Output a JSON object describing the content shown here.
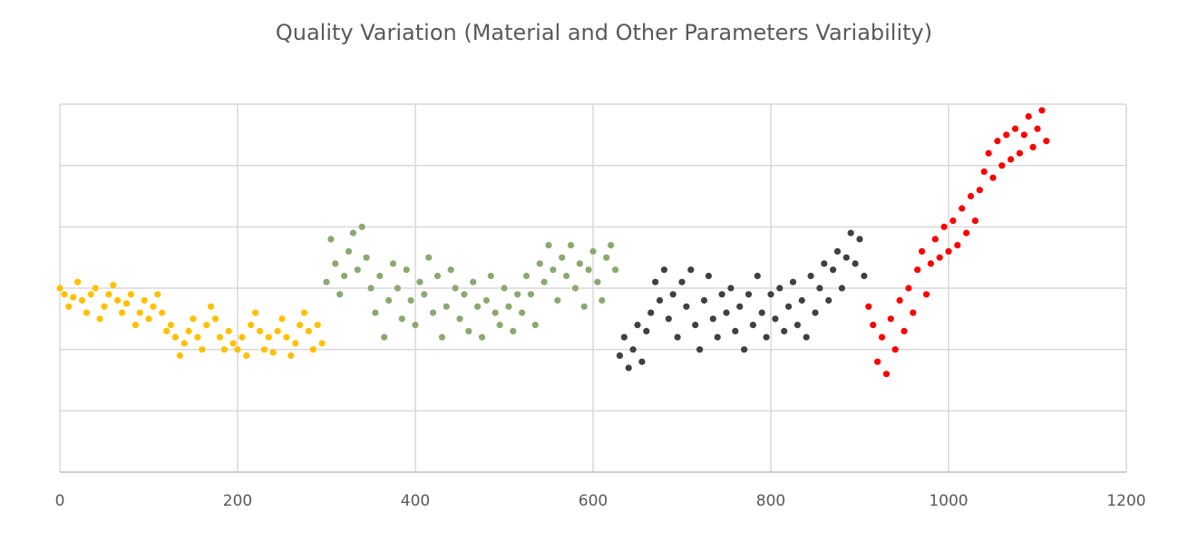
{
  "chart_data": {
    "type": "scatter",
    "title": "Quality Variation (Material and Other Parameters Variability)",
    "xlabel": "",
    "ylabel": "",
    "xlim": [
      0,
      1200
    ],
    "ylim": [
      0,
      6
    ],
    "x_ticks": [
      0,
      200,
      400,
      600,
      800,
      1000,
      1200
    ],
    "x_tick_labels": [
      "0",
      "200",
      "400",
      "600",
      "800",
      "1000",
      "1200"
    ],
    "y_gridlines": [
      0,
      1,
      2,
      3,
      4,
      5,
      6
    ],
    "y_tick_labels_shown": false,
    "grid": true,
    "legend": "none",
    "series": [
      {
        "color": "#FFC000",
        "points": [
          [
            0,
            3.0
          ],
          [
            5,
            2.9
          ],
          [
            10,
            2.7
          ],
          [
            15,
            2.85
          ],
          [
            20,
            3.1
          ],
          [
            25,
            2.8
          ],
          [
            30,
            2.6
          ],
          [
            35,
            2.9
          ],
          [
            40,
            3.0
          ],
          [
            45,
            2.5
          ],
          [
            50,
            2.7
          ],
          [
            55,
            2.9
          ],
          [
            60,
            3.05
          ],
          [
            65,
            2.8
          ],
          [
            70,
            2.6
          ],
          [
            75,
            2.75
          ],
          [
            80,
            2.9
          ],
          [
            85,
            2.4
          ],
          [
            90,
            2.6
          ],
          [
            95,
            2.8
          ],
          [
            100,
            2.5
          ],
          [
            105,
            2.7
          ],
          [
            110,
            2.9
          ],
          [
            115,
            2.6
          ],
          [
            120,
            2.3
          ],
          [
            125,
            2.4
          ],
          [
            130,
            2.2
          ],
          [
            135,
            1.9
          ],
          [
            140,
            2.1
          ],
          [
            145,
            2.3
          ],
          [
            150,
            2.5
          ],
          [
            155,
            2.2
          ],
          [
            160,
            2.0
          ],
          [
            165,
            2.4
          ],
          [
            170,
            2.7
          ],
          [
            175,
            2.5
          ],
          [
            180,
            2.2
          ],
          [
            185,
            2.0
          ],
          [
            190,
            2.3
          ],
          [
            195,
            2.1
          ],
          [
            200,
            2.0
          ],
          [
            205,
            2.2
          ],
          [
            210,
            1.9
          ],
          [
            215,
            2.4
          ],
          [
            220,
            2.6
          ],
          [
            225,
            2.3
          ],
          [
            230,
            2.0
          ],
          [
            235,
            2.2
          ],
          [
            240,
            1.95
          ],
          [
            245,
            2.3
          ],
          [
            250,
            2.5
          ],
          [
            255,
            2.2
          ],
          [
            260,
            1.9
          ],
          [
            265,
            2.1
          ],
          [
            270,
            2.4
          ],
          [
            275,
            2.6
          ],
          [
            280,
            2.3
          ],
          [
            285,
            2.0
          ],
          [
            290,
            2.4
          ],
          [
            295,
            2.1
          ]
        ]
      },
      {
        "color": "#8BA870",
        "points": [
          [
            300,
            3.1
          ],
          [
            305,
            3.8
          ],
          [
            310,
            3.4
          ],
          [
            315,
            2.9
          ],
          [
            320,
            3.2
          ],
          [
            325,
            3.6
          ],
          [
            330,
            3.9
          ],
          [
            335,
            3.3
          ],
          [
            340,
            4.0
          ],
          [
            345,
            3.5
          ],
          [
            350,
            3.0
          ],
          [
            355,
            2.6
          ],
          [
            360,
            3.2
          ],
          [
            365,
            2.2
          ],
          [
            370,
            2.8
          ],
          [
            375,
            3.4
          ],
          [
            380,
            3.0
          ],
          [
            385,
            2.5
          ],
          [
            390,
            3.3
          ],
          [
            395,
            2.8
          ],
          [
            400,
            2.4
          ],
          [
            405,
            3.1
          ],
          [
            410,
            2.9
          ],
          [
            415,
            3.5
          ],
          [
            420,
            2.6
          ],
          [
            425,
            3.2
          ],
          [
            430,
            2.2
          ],
          [
            435,
            2.7
          ],
          [
            440,
            3.3
          ],
          [
            445,
            3.0
          ],
          [
            450,
            2.5
          ],
          [
            455,
            2.9
          ],
          [
            460,
            2.3
          ],
          [
            465,
            3.1
          ],
          [
            470,
            2.7
          ],
          [
            475,
            2.2
          ],
          [
            480,
            2.8
          ],
          [
            485,
            3.2
          ],
          [
            490,
            2.6
          ],
          [
            495,
            2.4
          ],
          [
            500,
            3.0
          ],
          [
            505,
            2.7
          ],
          [
            510,
            2.3
          ],
          [
            515,
            2.9
          ],
          [
            520,
            2.6
          ],
          [
            525,
            3.2
          ],
          [
            530,
            2.9
          ],
          [
            535,
            2.4
          ],
          [
            540,
            3.4
          ],
          [
            545,
            3.1
          ],
          [
            550,
            3.7
          ],
          [
            555,
            3.3
          ],
          [
            560,
            2.8
          ],
          [
            565,
            3.5
          ],
          [
            570,
            3.2
          ],
          [
            575,
            3.7
          ],
          [
            580,
            3.0
          ],
          [
            585,
            3.4
          ],
          [
            590,
            2.7
          ],
          [
            595,
            3.3
          ],
          [
            600,
            3.6
          ],
          [
            605,
            3.1
          ],
          [
            610,
            2.8
          ],
          [
            615,
            3.5
          ],
          [
            620,
            3.7
          ],
          [
            625,
            3.3
          ]
        ]
      },
      {
        "color": "#404040",
        "points": [
          [
            630,
            1.9
          ],
          [
            635,
            2.2
          ],
          [
            640,
            1.7
          ],
          [
            645,
            2.0
          ],
          [
            650,
            2.4
          ],
          [
            655,
            1.8
          ],
          [
            660,
            2.3
          ],
          [
            665,
            2.6
          ],
          [
            670,
            3.1
          ],
          [
            675,
            2.8
          ],
          [
            680,
            3.3
          ],
          [
            685,
            2.5
          ],
          [
            690,
            2.9
          ],
          [
            695,
            2.2
          ],
          [
            700,
            3.1
          ],
          [
            705,
            2.7
          ],
          [
            710,
            3.3
          ],
          [
            715,
            2.4
          ],
          [
            720,
            2.0
          ],
          [
            725,
            2.8
          ],
          [
            730,
            3.2
          ],
          [
            735,
            2.5
          ],
          [
            740,
            2.2
          ],
          [
            745,
            2.9
          ],
          [
            750,
            2.6
          ],
          [
            755,
            3.0
          ],
          [
            760,
            2.3
          ],
          [
            765,
            2.7
          ],
          [
            770,
            2.0
          ],
          [
            775,
            2.9
          ],
          [
            780,
            2.4
          ],
          [
            785,
            3.2
          ],
          [
            790,
            2.6
          ],
          [
            795,
            2.2
          ],
          [
            800,
            2.9
          ],
          [
            805,
            2.5
          ],
          [
            810,
            3.0
          ],
          [
            815,
            2.3
          ],
          [
            820,
            2.7
          ],
          [
            825,
            3.1
          ],
          [
            830,
            2.4
          ],
          [
            835,
            2.8
          ],
          [
            840,
            2.2
          ],
          [
            845,
            3.2
          ],
          [
            850,
            2.6
          ],
          [
            855,
            3.0
          ],
          [
            860,
            3.4
          ],
          [
            865,
            2.8
          ],
          [
            870,
            3.3
          ],
          [
            875,
            3.6
          ],
          [
            880,
            3.0
          ],
          [
            885,
            3.5
          ],
          [
            890,
            3.9
          ],
          [
            895,
            3.4
          ],
          [
            900,
            3.8
          ],
          [
            905,
            3.2
          ]
        ]
      },
      {
        "color": "#FF0000",
        "points": [
          [
            910,
            2.7
          ],
          [
            915,
            2.4
          ],
          [
            920,
            1.8
          ],
          [
            925,
            2.2
          ],
          [
            930,
            1.6
          ],
          [
            935,
            2.5
          ],
          [
            940,
            2.0
          ],
          [
            945,
            2.8
          ],
          [
            950,
            2.3
          ],
          [
            955,
            3.0
          ],
          [
            960,
            2.6
          ],
          [
            965,
            3.3
          ],
          [
            970,
            3.6
          ],
          [
            975,
            2.9
          ],
          [
            980,
            3.4
          ],
          [
            985,
            3.8
          ],
          [
            990,
            3.5
          ],
          [
            995,
            4.0
          ],
          [
            1000,
            3.6
          ],
          [
            1005,
            4.1
          ],
          [
            1010,
            3.7
          ],
          [
            1015,
            4.3
          ],
          [
            1020,
            3.9
          ],
          [
            1025,
            4.5
          ],
          [
            1030,
            4.1
          ],
          [
            1035,
            4.6
          ],
          [
            1040,
            4.9
          ],
          [
            1045,
            5.2
          ],
          [
            1050,
            4.8
          ],
          [
            1055,
            5.4
          ],
          [
            1060,
            5.0
          ],
          [
            1065,
            5.5
          ],
          [
            1070,
            5.1
          ],
          [
            1075,
            5.6
          ],
          [
            1080,
            5.2
          ],
          [
            1085,
            5.5
          ],
          [
            1090,
            5.8
          ],
          [
            1095,
            5.3
          ],
          [
            1100,
            5.6
          ],
          [
            1105,
            5.9
          ],
          [
            1110,
            5.4
          ]
        ]
      }
    ]
  }
}
